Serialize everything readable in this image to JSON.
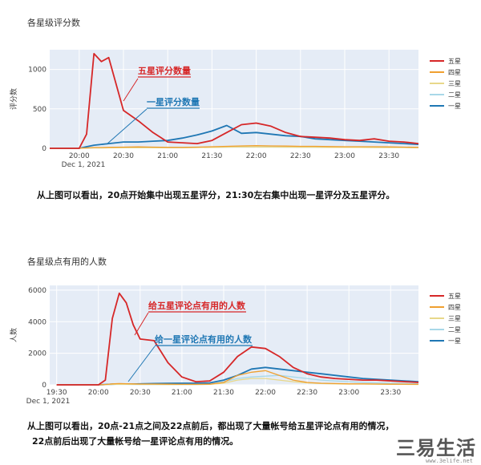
{
  "chart_data": [
    {
      "type": "line",
      "title": "各星级评分数",
      "ylabel": "评分数",
      "xlabel": "",
      "ylim": [
        0,
        1250
      ],
      "yticks": [
        "0",
        "500",
        "1000"
      ],
      "xticks": [
        "20:00",
        "20:30",
        "21:00",
        "21:30",
        "22:00",
        "22:30",
        "23:00",
        "23:30"
      ],
      "date_label": "Dec 1, 2021",
      "x": [
        "19:40",
        "19:50",
        "20:00",
        "20:05",
        "20:10",
        "20:15",
        "20:20",
        "20:30",
        "20:40",
        "20:50",
        "21:00",
        "21:10",
        "21:20",
        "21:30",
        "21:40",
        "21:50",
        "22:00",
        "22:10",
        "22:20",
        "22:30",
        "22:40",
        "22:50",
        "23:00",
        "23:10",
        "23:20",
        "23:30",
        "23:40",
        "23:50"
      ],
      "series": [
        {
          "name": "五星",
          "color": "#d62728",
          "values": [
            0,
            0,
            0,
            180,
            1200,
            1100,
            1150,
            480,
            350,
            200,
            80,
            70,
            60,
            100,
            200,
            300,
            320,
            280,
            200,
            150,
            140,
            130,
            110,
            100,
            120,
            90,
            80,
            60
          ]
        },
        {
          "name": "四星",
          "color": "#f0a030",
          "values": [
            0,
            0,
            0,
            5,
            10,
            10,
            12,
            15,
            18,
            15,
            12,
            12,
            15,
            20,
            25,
            30,
            35,
            30,
            28,
            25,
            25,
            22,
            20,
            20,
            20,
            18,
            15,
            12
          ]
        },
        {
          "name": "三星",
          "color": "#e8d88a",
          "values": [
            0,
            0,
            0,
            3,
            5,
            5,
            6,
            8,
            8,
            8,
            8,
            8,
            10,
            12,
            15,
            18,
            18,
            16,
            15,
            14,
            14,
            12,
            12,
            12,
            10,
            10,
            10,
            8
          ]
        },
        {
          "name": "二星",
          "color": "#a8d8e8",
          "values": [
            0,
            0,
            0,
            3,
            5,
            5,
            6,
            8,
            8,
            8,
            8,
            8,
            10,
            12,
            15,
            18,
            18,
            16,
            15,
            14,
            14,
            12,
            12,
            12,
            10,
            10,
            10,
            8
          ]
        },
        {
          "name": "一星",
          "color": "#1f77b4",
          "values": [
            0,
            0,
            0,
            20,
            40,
            50,
            60,
            80,
            80,
            90,
            100,
            130,
            170,
            220,
            290,
            190,
            200,
            180,
            160,
            150,
            120,
            110,
            100,
            90,
            80,
            70,
            60,
            50
          ]
        }
      ],
      "annotations": [
        {
          "text": "五星评分数量",
          "color": "#d62728"
        },
        {
          "text": "一星评分数量",
          "color": "#1f77b4"
        }
      ],
      "legend": "right"
    },
    {
      "type": "line",
      "title": "各星级点有用的人数",
      "ylabel": "人数",
      "xlabel": "",
      "ylim": [
        0,
        6300
      ],
      "yticks": [
        "0",
        "2000",
        "4000",
        "6000"
      ],
      "xticks": [
        "19:30",
        "20:00",
        "20:30",
        "21:00",
        "21:30",
        "22:00",
        "22:30",
        "23:00",
        "23:30"
      ],
      "date_label": "Dec 1, 2021",
      "x": [
        "19:30",
        "19:40",
        "19:50",
        "20:00",
        "20:05",
        "20:10",
        "20:15",
        "20:20",
        "20:25",
        "20:30",
        "20:40",
        "20:50",
        "21:00",
        "21:10",
        "21:20",
        "21:30",
        "21:40",
        "21:50",
        "22:00",
        "22:10",
        "22:20",
        "22:30",
        "22:40",
        "22:50",
        "23:00",
        "23:10",
        "23:20",
        "23:30",
        "23:40",
        "23:50"
      ],
      "series": [
        {
          "name": "五星",
          "color": "#d62728",
          "values": [
            0,
            0,
            0,
            0,
            300,
            4200,
            5800,
            5200,
            3800,
            2900,
            2800,
            1400,
            500,
            200,
            250,
            800,
            1800,
            2400,
            2300,
            1800,
            1100,
            700,
            500,
            400,
            350,
            300,
            300,
            250,
            200,
            150
          ]
        },
        {
          "name": "四星",
          "color": "#f0a030",
          "values": [
            0,
            0,
            0,
            0,
            20,
            60,
            80,
            70,
            60,
            50,
            50,
            40,
            30,
            30,
            40,
            150,
            600,
            800,
            900,
            600,
            300,
            150,
            100,
            80,
            60,
            60,
            50,
            40,
            40,
            30
          ]
        },
        {
          "name": "三星",
          "color": "#e8d88a",
          "values": [
            0,
            0,
            0,
            0,
            10,
            30,
            40,
            35,
            30,
            25,
            25,
            20,
            20,
            20,
            30,
            100,
            300,
            400,
            400,
            300,
            200,
            120,
            80,
            60,
            50,
            50,
            40,
            30,
            30,
            20
          ]
        },
        {
          "name": "二星",
          "color": "#a8d8e8",
          "values": [
            0,
            0,
            0,
            0,
            10,
            20,
            30,
            25,
            20,
            20,
            20,
            20,
            20,
            20,
            30,
            200,
            400,
            500,
            550,
            600,
            500,
            400,
            300,
            250,
            200,
            150,
            120,
            100,
            80,
            60
          ]
        },
        {
          "name": "一星",
          "color": "#1f77b4",
          "values": [
            0,
            0,
            0,
            0,
            20,
            40,
            50,
            50,
            50,
            60,
            80,
            90,
            100,
            100,
            120,
            300,
            600,
            1000,
            1100,
            1000,
            900,
            800,
            700,
            600,
            500,
            400,
            350,
            300,
            250,
            200
          ]
        }
      ],
      "annotations": [
        {
          "text": "给五星评论点有用的人数",
          "color": "#d62728"
        },
        {
          "text": "给一星评论点有用的人数",
          "color": "#1f77b4"
        }
      ],
      "legend": "right"
    }
  ],
  "captions": {
    "chart1": "从上图可以看出，20点开始集中出现五星评分，21:30左右集中出现一星评分及五星评分。",
    "chart2_line1": "从上图可以看出，20点-21点之间及22点前后，都出现了大量帐号给五星评论点有用的情况，",
    "chart2_line2": "22点前后出现了大量帐号给一星评论点有用的情况。"
  },
  "watermark": {
    "text": "三易生活",
    "url": "www.3elife.net"
  }
}
